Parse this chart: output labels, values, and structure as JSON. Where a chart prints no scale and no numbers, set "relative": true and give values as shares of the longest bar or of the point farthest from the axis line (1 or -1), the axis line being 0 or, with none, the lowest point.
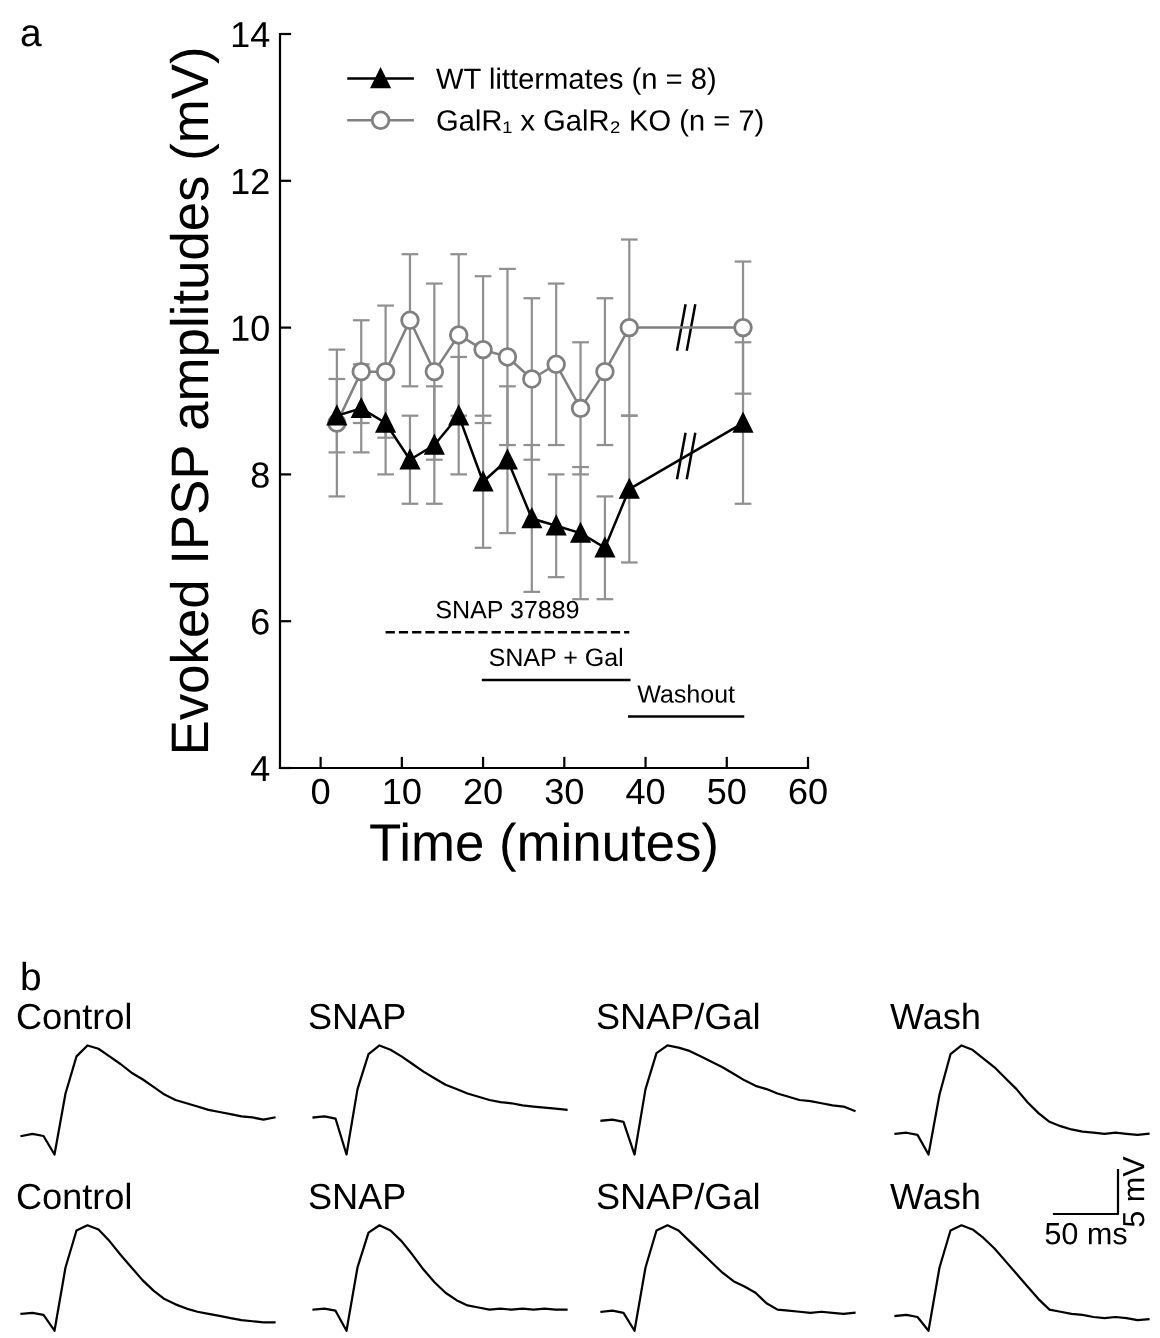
{
  "chart_data": [
    {
      "type": "line",
      "title": "a",
      "xlabel": "Time (minutes)",
      "ylabel": "Evoked IPSP amplitudes (mV)",
      "xlim": [
        -5,
        60
      ],
      "xticks": [
        0,
        10,
        20,
        30,
        40,
        50,
        60
      ],
      "ylim": [
        4,
        14
      ],
      "yticks": [
        4,
        6,
        8,
        10,
        12,
        14
      ],
      "legend": "top left",
      "grid": false,
      "line_style": "solid",
      "series": [
        {
          "name": "WT littermates (n = 8)",
          "color": "#000000",
          "marker": "triangle",
          "x": [
            2,
            5,
            8,
            11,
            14,
            17,
            20,
            23,
            26,
            29,
            32,
            35,
            38,
            52
          ],
          "values": [
            8.8,
            8.9,
            8.7,
            8.2,
            8.4,
            8.8,
            7.9,
            8.2,
            7.4,
            7.3,
            7.2,
            7.0,
            7.8,
            8.7
          ],
          "errors": [
            0.5,
            0.6,
            0.7,
            0.6,
            0.8,
            0.8,
            0.9,
            1.0,
            1.0,
            0.7,
            0.9,
            0.7,
            1.0,
            1.1
          ]
        },
        {
          "name": "GalR₁ x GalR₂ KO (n = 7)",
          "color": "#808080",
          "marker": "circle",
          "x": [
            2,
            5,
            8,
            11,
            14,
            17,
            20,
            23,
            26,
            29,
            32,
            35,
            38,
            52
          ],
          "values": [
            8.7,
            9.4,
            9.4,
            10.1,
            9.4,
            9.9,
            9.7,
            9.6,
            9.3,
            9.5,
            8.9,
            9.4,
            10.0,
            10.0
          ],
          "errors": [
            1.0,
            0.7,
            0.9,
            0.9,
            1.2,
            1.1,
            1.0,
            1.2,
            1.1,
            1.1,
            0.9,
            1.0,
            1.2,
            0.9
          ]
        },
        {
          "name": "SNAP 37889",
          "color": "#000000",
          "marker": "none",
          "line_style": "dashed",
          "x": [
            8,
            38
          ],
          "values": [
            5.85,
            5.85
          ]
        },
        {
          "name": "SNAP + Gal",
          "color": "#000000",
          "marker": "none",
          "line_style": "solid",
          "x": [
            20,
            38
          ],
          "values": [
            5.2,
            5.2
          ]
        },
        {
          "name": "Washout",
          "color": "#000000",
          "marker": "none",
          "line_style": "solid",
          "x": [
            38,
            52
          ],
          "values": [
            4.7,
            4.7
          ]
        }
      ]
    },
    {
      "type": "line",
      "relative": true,
      "title": "Control",
      "annotations": [
        "b"
      ],
      "categories": [
        null,
        null,
        null,
        null,
        null,
        null,
        null,
        null,
        null,
        null,
        null,
        null,
        null,
        null,
        null,
        null,
        null,
        null,
        null,
        null,
        null,
        null,
        null,
        null
      ],
      "series": [
        {
          "color": "#000000",
          "values": [
            0.17,
            0.19,
            0.17,
            0,
            0.56,
            0.9,
            1,
            0.97,
            0.9,
            0.83,
            0.75,
            0.69,
            0.62,
            0.55,
            0.5,
            0.47,
            0.44,
            0.41,
            0.39,
            0.37,
            0.35,
            0.34,
            0.32,
            0.34
          ]
        }
      ]
    },
    {
      "type": "line",
      "relative": true,
      "title": "SNAP",
      "categories": [
        null,
        null,
        null,
        null,
        null,
        null,
        null,
        null,
        null,
        null,
        null,
        null,
        null,
        null,
        null,
        null,
        null,
        null,
        null,
        null,
        null,
        null,
        null,
        null
      ],
      "series": [
        {
          "color": "#000000",
          "values": [
            0.34,
            0.35,
            0.33,
            0,
            0.6,
            0.92,
            1,
            0.96,
            0.9,
            0.83,
            0.76,
            0.7,
            0.64,
            0.6,
            0.56,
            0.53,
            0.5,
            0.48,
            0.47,
            0.45,
            0.44,
            0.43,
            0.42,
            0.41
          ]
        }
      ]
    },
    {
      "type": "line",
      "relative": true,
      "title": "SNAP/Gal",
      "categories": [
        null,
        null,
        null,
        null,
        null,
        null,
        null,
        null,
        null,
        null,
        null,
        null,
        null,
        null,
        null,
        null,
        null,
        null,
        null,
        null,
        null,
        null,
        null,
        null
      ],
      "series": [
        {
          "color": "#000000",
          "values": [
            0.31,
            0.32,
            0.3,
            0,
            0.6,
            0.93,
            1,
            0.98,
            0.95,
            0.9,
            0.85,
            0.8,
            0.74,
            0.68,
            0.63,
            0.6,
            0.56,
            0.53,
            0.5,
            0.49,
            0.47,
            0.45,
            0.44,
            0.4
          ]
        }
      ]
    },
    {
      "type": "line",
      "relative": true,
      "title": "Wash",
      "categories": [
        null,
        null,
        null,
        null,
        null,
        null,
        null,
        null,
        null,
        null,
        null,
        null,
        null,
        null,
        null,
        null,
        null,
        null,
        null,
        null,
        null,
        null,
        null,
        null
      ],
      "series": [
        {
          "color": "#000000",
          "values": [
            0.19,
            0.2,
            0.18,
            0,
            0.55,
            0.92,
            1,
            0.96,
            0.88,
            0.8,
            0.7,
            0.6,
            0.48,
            0.38,
            0.3,
            0.26,
            0.23,
            0.21,
            0.2,
            0.19,
            0.2,
            0.19,
            0.18,
            0.19
          ]
        }
      ]
    },
    {
      "type": "line",
      "relative": true,
      "title": "Control",
      "categories": [
        null,
        null,
        null,
        null,
        null,
        null,
        null,
        null,
        null,
        null,
        null,
        null,
        null,
        null,
        null,
        null,
        null,
        null,
        null,
        null,
        null,
        null,
        null,
        null
      ],
      "series": [
        {
          "color": "#000000",
          "values": [
            0.16,
            0.17,
            0.15,
            0,
            0.6,
            0.95,
            1,
            0.96,
            0.85,
            0.72,
            0.6,
            0.48,
            0.38,
            0.3,
            0.25,
            0.21,
            0.18,
            0.16,
            0.14,
            0.12,
            0.1,
            0.09,
            0.08,
            0.08
          ]
        }
      ]
    },
    {
      "type": "line",
      "relative": true,
      "title": "SNAP",
      "categories": [
        null,
        null,
        null,
        null,
        null,
        null,
        null,
        null,
        null,
        null,
        null,
        null,
        null,
        null,
        null,
        null,
        null,
        null,
        null,
        null,
        null,
        null,
        null,
        null
      ],
      "series": [
        {
          "color": "#000000",
          "values": [
            0.2,
            0.21,
            0.19,
            0,
            0.6,
            0.93,
            1,
            0.95,
            0.85,
            0.72,
            0.58,
            0.46,
            0.36,
            0.29,
            0.24,
            0.22,
            0.2,
            0.21,
            0.2,
            0.21,
            0.2,
            0.21,
            0.2,
            0.2
          ]
        }
      ]
    },
    {
      "type": "line",
      "relative": true,
      "title": "SNAP/Gal",
      "categories": [
        null,
        null,
        null,
        null,
        null,
        null,
        null,
        null,
        null,
        null,
        null,
        null,
        null,
        null,
        null,
        null,
        null,
        null,
        null,
        null,
        null,
        null,
        null,
        null
      ],
      "series": [
        {
          "color": "#000000",
          "values": [
            0.18,
            0.19,
            0.17,
            0,
            0.6,
            0.95,
            1,
            0.95,
            0.85,
            0.75,
            0.65,
            0.55,
            0.47,
            0.42,
            0.36,
            0.26,
            0.2,
            0.19,
            0.18,
            0.17,
            0.18,
            0.17,
            0.16,
            0.17
          ]
        }
      ]
    },
    {
      "type": "line",
      "relative": true,
      "title": "Wash",
      "annotations": [
        "5 mV",
        "50 ms"
      ],
      "categories": [
        null,
        null,
        null,
        null,
        null,
        null,
        null,
        null,
        null,
        null,
        null,
        null,
        null,
        null,
        null,
        null,
        null,
        null,
        null,
        null,
        null,
        null,
        null,
        null
      ],
      "series": [
        {
          "color": "#000000",
          "values": [
            0.14,
            0.15,
            0.13,
            0,
            0.6,
            0.95,
            1,
            0.96,
            0.88,
            0.78,
            0.66,
            0.54,
            0.42,
            0.3,
            0.2,
            0.18,
            0.16,
            0.15,
            0.13,
            0.12,
            0.13,
            0.12,
            0.1,
            0.11
          ]
        }
      ]
    }
  ]
}
